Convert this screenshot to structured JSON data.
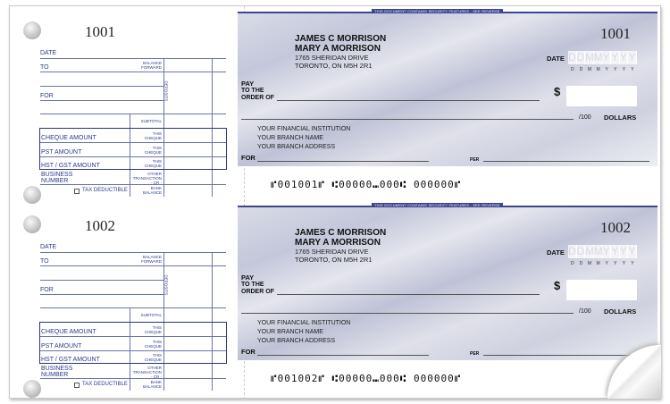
{
  "security_text": "THIS DOCUMENT CONTAINS SECURITY FEATURES - SEE REVERSE",
  "stub_labels": {
    "date": "DATE",
    "to": "TO",
    "for": "FOR",
    "balance_forward": "BALANCE FORWARD",
    "deposits": "DEPOSITS",
    "subtotal": "SUBTOTAL",
    "cheque_amount": "CHEQUE AMOUNT",
    "pst_amount": "PST AMOUNT",
    "hst_gst_amount": "HST / GST AMOUNT",
    "this_cheque": "THIS CHEQUE",
    "business_number": "BUSINESS NUMBER",
    "other_transaction": "OTHER TRANSACTION - CR -",
    "tax_deductible": "TAX DEDUCTIBLE",
    "bank_balance": "BANK BALANCE"
  },
  "cheque_labels": {
    "name1": "JAMES C MORRISON",
    "name2": "MARY A MORRISON",
    "address1": "1765 SHERIDAN DRIVE",
    "address2": "TORONTO, ON M5H 2R1",
    "date": "DATE",
    "date_format": [
      "D",
      "D",
      "M",
      "M",
      "Y",
      "Y",
      "Y",
      "Y"
    ],
    "pay": "PAY",
    "to_the": "TO THE",
    "order_of": "ORDER OF",
    "dollar_sign": "$",
    "per_100": "/100",
    "dollars": "DOLLARS",
    "bank1": "YOUR FINANCIAL INSTITUTION",
    "bank2": "YOUR BRANCH NAME",
    "bank3": "YOUR BRANCH ADDRESS",
    "for": "FOR",
    "per": "PER"
  },
  "cheques": [
    {
      "number": "1001",
      "micr": "⑈001001⑈ ⑆00000⑉000⑆ 000000⑈"
    },
    {
      "number": "1002",
      "micr": "⑈001002⑈ ⑆00000⑉000⑆ 000000⑈"
    }
  ]
}
